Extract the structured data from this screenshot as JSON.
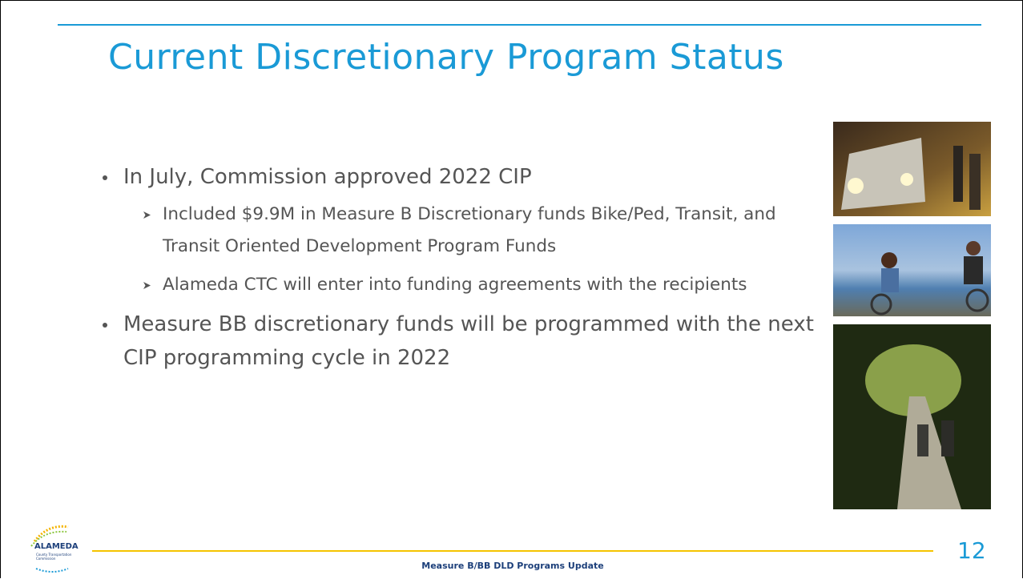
{
  "title": "Current Discretionary Program Status",
  "bullets": [
    {
      "text": "In July, Commission approved 2022 CIP",
      "sub": [
        "Included $9.9M in Measure B Discretionary funds Bike/Ped, Transit, and Transit Oriented Development Program Funds",
        "Alameda CTC will enter into funding agreements with the recipients"
      ]
    },
    {
      "text": "Measure BB discretionary funds will be programmed with the next CIP programming cycle in 2022",
      "sub": []
    }
  ],
  "logo": {
    "name": "ALAMEDA",
    "subtitle": "County Transportation Commission"
  },
  "footer": "Measure B/BB DLD Programs Update",
  "page_number": "12"
}
